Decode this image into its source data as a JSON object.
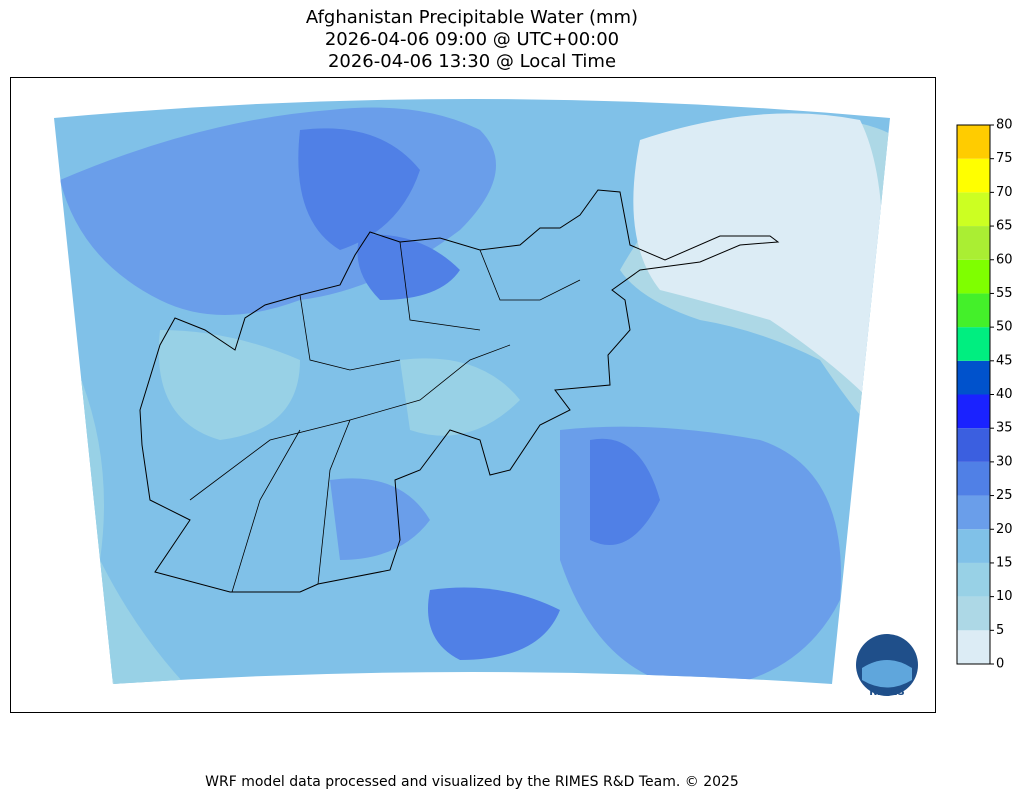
{
  "header": {
    "title": [
      "Afghanistan Precipitable Water (mm)",
      "2026-04-06 09:00 @ UTC+00:00",
      "2026-04-06 13:30 @ Local Time"
    ]
  },
  "colorbar": {
    "levels": [
      0,
      5,
      10,
      15,
      20,
      25,
      30,
      35,
      40,
      45,
      50,
      55,
      60,
      65,
      70,
      75,
      80
    ],
    "colors": [
      "#dcecf5",
      "#add8e6",
      "#98d1e6",
      "#80c1e8",
      "#6a9eea",
      "#5080e6",
      "#3b5fe0",
      "#1a22ff",
      "#0052cc",
      "#00ee80",
      "#44f02a",
      "#7fff00",
      "#aaee33",
      "#ccff22",
      "#ffff00",
      "#ffcc00"
    ]
  },
  "logo": {
    "label": "RIMES"
  },
  "footer": {
    "text": "WRF model data processed and visualized by the RIMES R&D Team. © 2025"
  }
}
